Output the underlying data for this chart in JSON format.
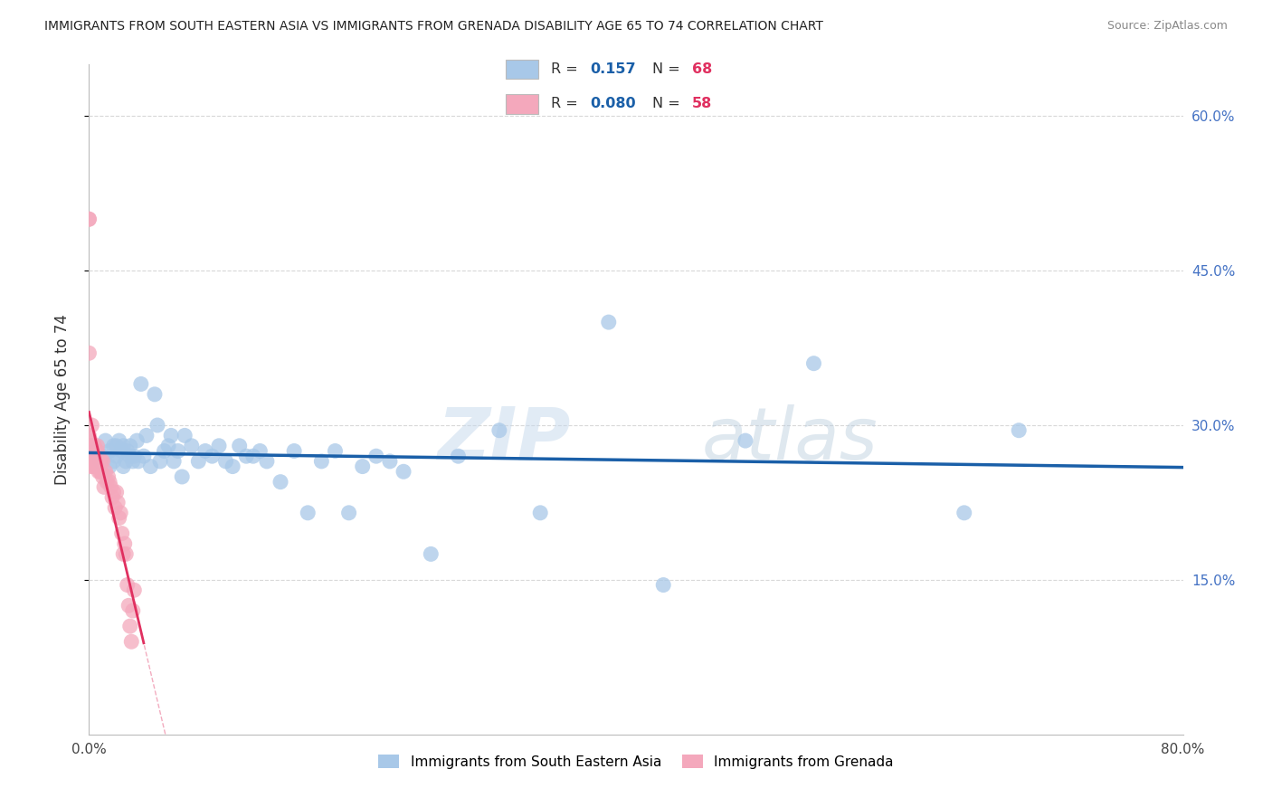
{
  "title": "IMMIGRANTS FROM SOUTH EASTERN ASIA VS IMMIGRANTS FROM GRENADA DISABILITY AGE 65 TO 74 CORRELATION CHART",
  "source": "Source: ZipAtlas.com",
  "ylabel_left": "Disability Age 65 to 74",
  "series1_label": "Immigrants from South Eastern Asia",
  "series2_label": "Immigrants from Grenada",
  "series1_color": "#a8c8e8",
  "series2_color": "#f4a8bc",
  "series1_line_color": "#1a5fa8",
  "series2_line_color": "#e03060",
  "series1_R": "0.157",
  "series1_N": "68",
  "series2_R": "0.080",
  "series2_N": "58",
  "legend_R_color": "#1a5fa8",
  "legend_N_color": "#e03060",
  "watermark": "ZIPatlas",
  "background_color": "#ffffff",
  "grid_color": "#d8d8d8",
  "xlim": [
    0.0,
    0.8
  ],
  "ylim": [
    0.0,
    0.65
  ],
  "yticks": [
    0.15,
    0.3,
    0.45,
    0.6
  ],
  "series1_x": [
    0.005,
    0.008,
    0.01,
    0.012,
    0.015,
    0.015,
    0.018,
    0.018,
    0.02,
    0.02,
    0.022,
    0.024,
    0.025,
    0.025,
    0.027,
    0.028,
    0.03,
    0.03,
    0.032,
    0.033,
    0.035,
    0.036,
    0.038,
    0.04,
    0.042,
    0.045,
    0.048,
    0.05,
    0.052,
    0.055,
    0.058,
    0.06,
    0.062,
    0.065,
    0.068,
    0.07,
    0.075,
    0.08,
    0.085,
    0.09,
    0.095,
    0.1,
    0.105,
    0.11,
    0.115,
    0.12,
    0.125,
    0.13,
    0.14,
    0.15,
    0.16,
    0.17,
    0.18,
    0.19,
    0.2,
    0.21,
    0.22,
    0.23,
    0.25,
    0.27,
    0.3,
    0.33,
    0.38,
    0.42,
    0.48,
    0.53,
    0.64,
    0.68
  ],
  "series1_y": [
    0.275,
    0.265,
    0.27,
    0.285,
    0.26,
    0.275,
    0.265,
    0.28,
    0.27,
    0.28,
    0.285,
    0.275,
    0.26,
    0.28,
    0.265,
    0.275,
    0.27,
    0.28,
    0.265,
    0.27,
    0.285,
    0.265,
    0.34,
    0.27,
    0.29,
    0.26,
    0.33,
    0.3,
    0.265,
    0.275,
    0.28,
    0.29,
    0.265,
    0.275,
    0.25,
    0.29,
    0.28,
    0.265,
    0.275,
    0.27,
    0.28,
    0.265,
    0.26,
    0.28,
    0.27,
    0.27,
    0.275,
    0.265,
    0.245,
    0.275,
    0.215,
    0.265,
    0.275,
    0.215,
    0.26,
    0.27,
    0.265,
    0.255,
    0.175,
    0.27,
    0.295,
    0.215,
    0.4,
    0.145,
    0.285,
    0.36,
    0.215,
    0.295
  ],
  "series2_x": [
    0.0,
    0.0,
    0.0,
    0.0,
    0.001,
    0.001,
    0.001,
    0.001,
    0.002,
    0.002,
    0.002,
    0.002,
    0.002,
    0.003,
    0.003,
    0.003,
    0.003,
    0.004,
    0.004,
    0.004,
    0.004,
    0.005,
    0.005,
    0.005,
    0.006,
    0.006,
    0.006,
    0.007,
    0.007,
    0.008,
    0.008,
    0.009,
    0.009,
    0.01,
    0.01,
    0.011,
    0.012,
    0.013,
    0.014,
    0.015,
    0.016,
    0.017,
    0.018,
    0.019,
    0.02,
    0.021,
    0.022,
    0.023,
    0.024,
    0.025,
    0.026,
    0.027,
    0.028,
    0.029,
    0.03,
    0.031,
    0.032,
    0.033
  ],
  "series2_y": [
    0.5,
    0.5,
    0.37,
    0.29,
    0.27,
    0.275,
    0.285,
    0.26,
    0.27,
    0.265,
    0.28,
    0.265,
    0.3,
    0.28,
    0.27,
    0.26,
    0.28,
    0.265,
    0.27,
    0.28,
    0.27,
    0.265,
    0.275,
    0.26,
    0.275,
    0.265,
    0.28,
    0.255,
    0.27,
    0.255,
    0.265,
    0.255,
    0.265,
    0.25,
    0.265,
    0.24,
    0.255,
    0.245,
    0.25,
    0.245,
    0.24,
    0.23,
    0.235,
    0.22,
    0.235,
    0.225,
    0.21,
    0.215,
    0.195,
    0.175,
    0.185,
    0.175,
    0.145,
    0.125,
    0.105,
    0.09,
    0.12,
    0.14
  ]
}
